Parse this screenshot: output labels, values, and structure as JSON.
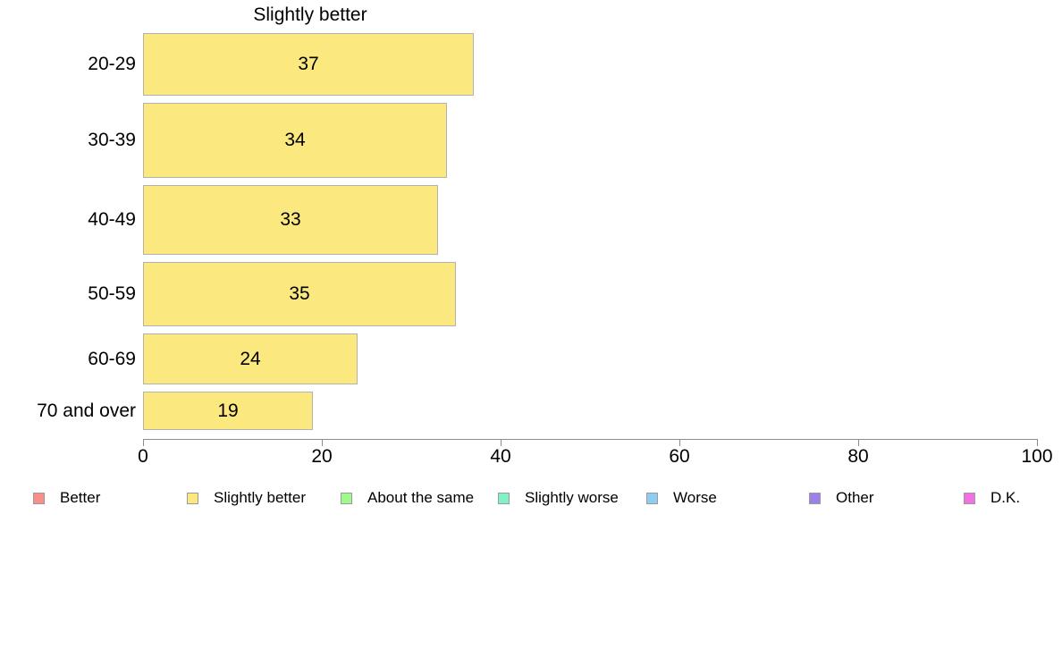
{
  "chart_data": {
    "type": "bar",
    "orientation": "horizontal",
    "title": "Slightly better",
    "categories": [
      "20-29",
      "30-39",
      "40-49",
      "50-59",
      "60-69",
      "70 and over"
    ],
    "values": [
      37,
      34,
      33,
      35,
      24,
      19
    ],
    "xlabel": "",
    "ylabel": "",
    "xlim": [
      0,
      100
    ],
    "x_ticks": [
      0,
      20,
      40,
      60,
      80,
      100
    ],
    "grid": "off",
    "data_labels_shown_inside_bars": true,
    "bar_color": "#fbe87e",
    "bar_border_color": "#b2b2b2",
    "row_thickness_px": [
      70,
      84,
      78,
      72,
      57,
      43
    ],
    "legend": {
      "position": "bottom",
      "items": [
        {
          "label": "Better",
          "color": "#fa8e88"
        },
        {
          "label": "Slightly better",
          "color": "#fbe87e"
        },
        {
          "label": "About the same",
          "color": "#9ffa8c"
        },
        {
          "label": "Slightly worse",
          "color": "#80f2c6"
        },
        {
          "label": "Worse",
          "color": "#8fccf2"
        },
        {
          "label": "Other",
          "color": "#9c82e8"
        },
        {
          "label": "D.K.",
          "color": "#f370e2"
        }
      ]
    }
  }
}
